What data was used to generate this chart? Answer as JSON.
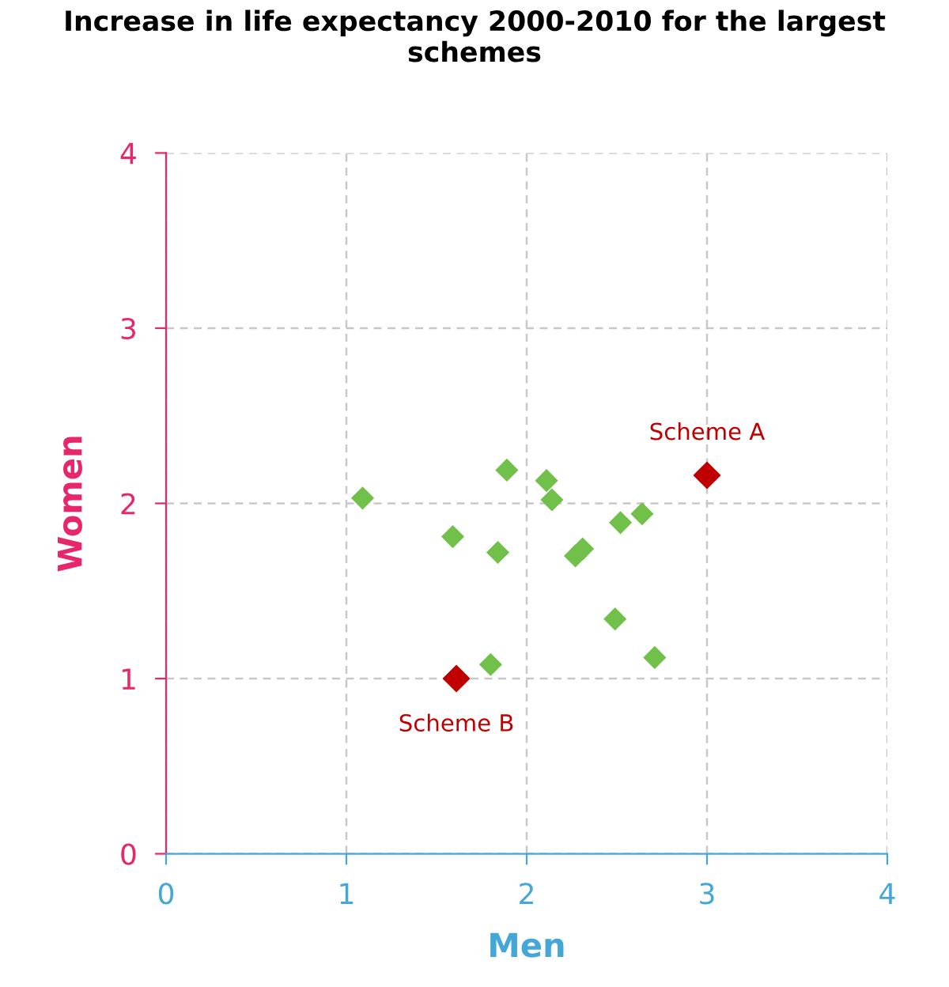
{
  "chart_data": {
    "type": "scatter",
    "title": "Increase in life expectancy 2000-2010 for the largest\nschemes",
    "xlabel": "Men",
    "ylabel": "Women",
    "series": [
      {
        "color": "#70c04a",
        "x": [
          1.09,
          1.59,
          1.89,
          1.84,
          2.11,
          2.14,
          2.27,
          2.31,
          2.52,
          2.64,
          2.49,
          2.71,
          1.8
        ],
        "values": [
          2.03,
          1.81,
          2.19,
          1.72,
          2.13,
          2.02,
          1.7,
          1.74,
          1.89,
          1.94,
          1.34,
          1.12,
          1.08
        ]
      },
      {
        "color": "#c00000",
        "x": [
          3.0,
          1.61
        ],
        "values": [
          2.16,
          1.0
        ]
      }
    ],
    "annotations": [
      {
        "text": "Scheme A",
        "x": 3.0,
        "y": 2.16
      },
      {
        "text": "Scheme B",
        "x": 1.61,
        "y": 1.0
      }
    ],
    "xlim": [
      0,
      4
    ],
    "xticks": [
      0,
      1,
      2,
      3,
      4
    ],
    "ylim": [
      0,
      4
    ],
    "yticks": [
      0,
      1,
      2,
      3,
      4
    ],
    "grid": true,
    "marker": "diamond"
  }
}
